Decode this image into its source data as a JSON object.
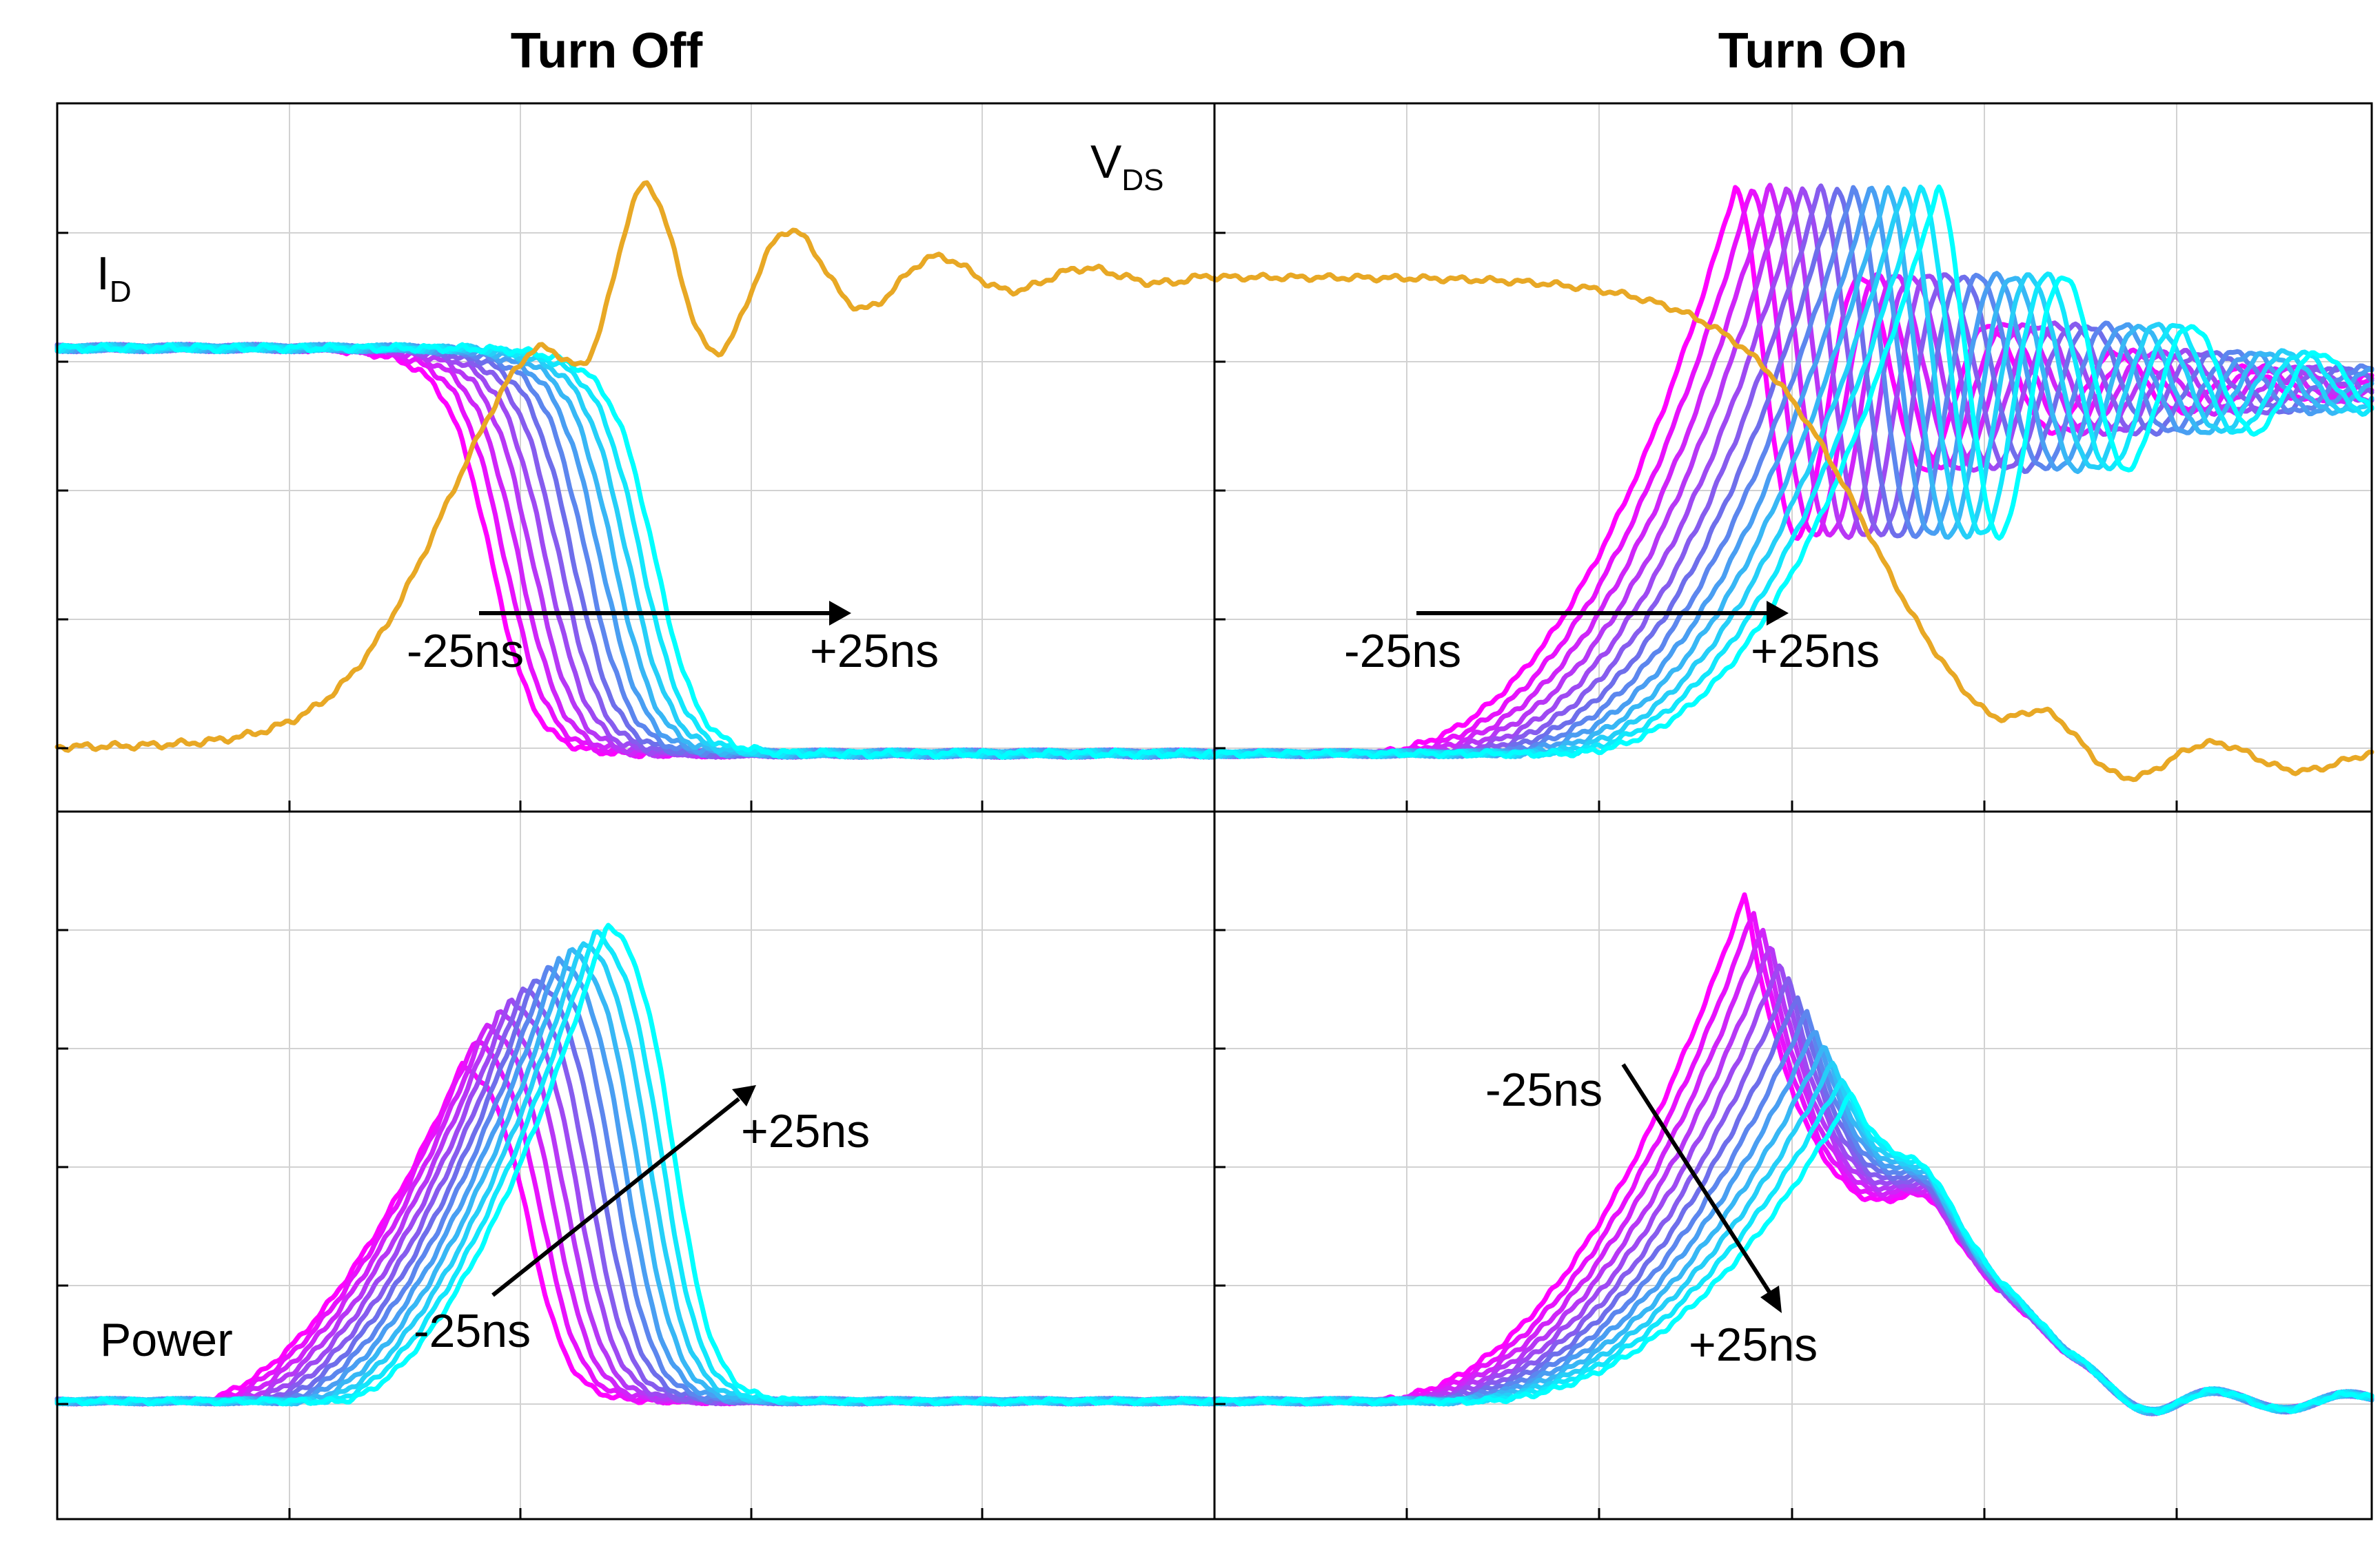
{
  "chart_data": [
    {
      "type": "line",
      "panel": "top-left",
      "title": "Turn Off",
      "quantity": "I_D and V_DS",
      "labels": [
        {
          "main": "I",
          "sub": "D"
        },
        {
          "main": "V",
          "sub": "DS"
        }
      ],
      "sweep_annotation": {
        "start": "-25ns",
        "end": "+25ns"
      },
      "sweep_count": 13,
      "xlim": [
        0,
        6
      ],
      "ylim": [
        0,
        5.5
      ],
      "vds": {
        "low": 0.5,
        "rise_center": 2.0,
        "overshoot_peak": 5.0,
        "settle": 4.15
      },
      "id_family": {
        "high": 3.6,
        "low": 0.45,
        "first_fall_center": 2.25,
        "last_fall_center": 3.1
      },
      "grid": true
    },
    {
      "type": "line",
      "panel": "top-right",
      "title": "Turn On",
      "quantity": "I_D and V_DS",
      "sweep_annotation": {
        "start": "-25ns",
        "end": "+25ns"
      },
      "sweep_count": 13,
      "xlim": [
        0,
        6
      ],
      "ylim": [
        0,
        5.5
      ],
      "vds": {
        "start": 4.15,
        "fall_center": 3.4,
        "low": 0.4
      },
      "id_family": {
        "low": 0.45,
        "overshoot_peak": 4.85,
        "settle": 3.3,
        "first_rise_peak_x": 2.7,
        "last_rise_peak_x": 3.75
      },
      "grid": true
    },
    {
      "type": "line",
      "panel": "bottom-left",
      "title": "",
      "quantity": "Power",
      "label": "Power",
      "sweep_annotation": {
        "start": "-25ns",
        "end": "+25ns"
      },
      "sweep_count": 13,
      "xlim": [
        0,
        6
      ],
      "ylim": [
        0,
        6
      ],
      "power_family": {
        "baseline": 1.0,
        "first_peak": 3.85,
        "last_peak": 5.05,
        "first_peak_x": 2.1,
        "last_peak_x": 2.85
      },
      "grid": true
    },
    {
      "type": "line",
      "panel": "bottom-right",
      "title": "",
      "quantity": "Power",
      "sweep_annotation": {
        "start": "-25ns",
        "end": "+25ns"
      },
      "sweep_count": 13,
      "xlim": [
        0,
        6
      ],
      "ylim": [
        0,
        6
      ],
      "power_family": {
        "baseline": 1.0,
        "first_peak": 5.3,
        "last_peak": 3.6,
        "first_peak_x": 2.75,
        "last_peak_x": 3.3
      },
      "grid": true
    }
  ],
  "colors": {
    "vds": "#E8A825",
    "sweep_start": "#FF00FF",
    "sweep_end": "#00FFFF",
    "arrow": "#000000"
  }
}
